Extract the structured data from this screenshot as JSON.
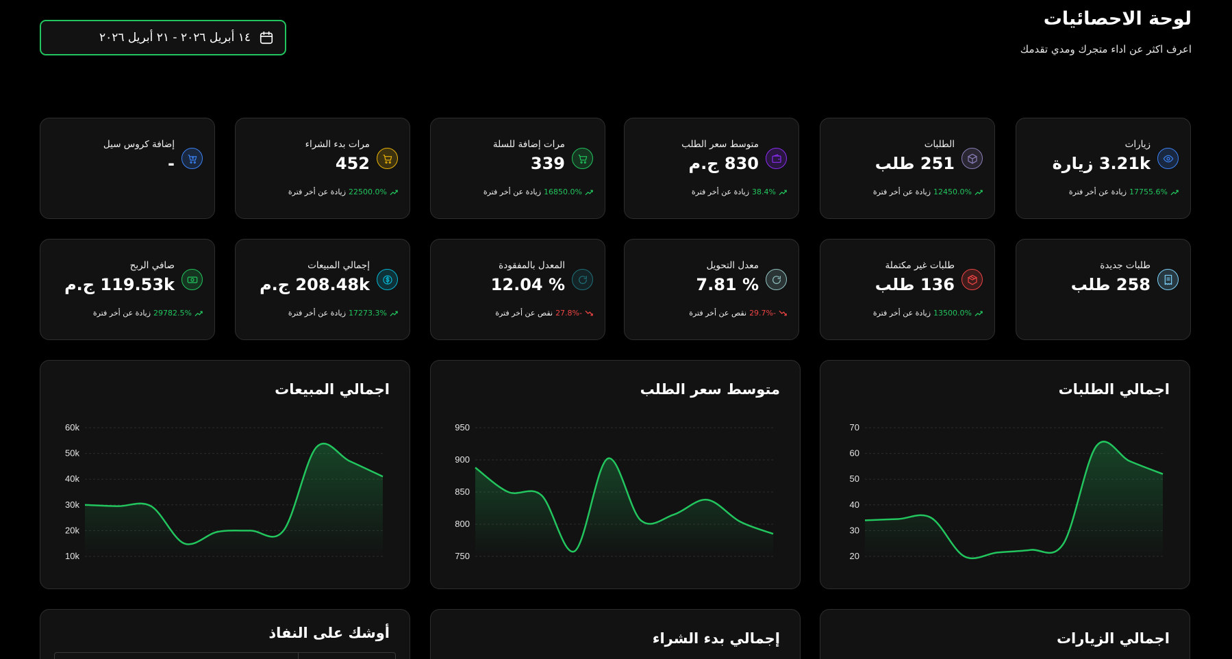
{
  "header": {
    "title": "لوحة الاحصائيات",
    "subtitle": "اعرف اكثر عن اداء متجرك ومدي تقدمك",
    "date_range": "١٤ أبريل ٢٠٢٦  -  ٢١ أبريل ٢٠٢٦"
  },
  "colors": {
    "accent": "#22c55e",
    "down": "#ef4444",
    "card_bg": "#121212",
    "border": "#2e2e2e"
  },
  "stats": [
    {
      "label": "زيارات",
      "value": "3.21k زيارة",
      "pct": "17755.6%",
      "trend_text": "زيادة عن أخر فترة",
      "dir": "up",
      "icon": "eye-icon",
      "color": "#3b82f6"
    },
    {
      "label": "الطلبات",
      "value": "251 طلب",
      "pct": "12450.0%",
      "trend_text": "زيادة عن أخر فترة",
      "dir": "up",
      "icon": "box-icon",
      "color": "#8b7fb8"
    },
    {
      "label": "متوسط سعر الطلب",
      "value": "830 ج.م",
      "pct": "38.4%",
      "trend_text": "زيادة عن أخر فترة",
      "dir": "up",
      "icon": "wallet-icon",
      "color": "#8b2cf5"
    },
    {
      "label": "مرات إضافة للسلة",
      "value": "339",
      "pct": "16850.0%",
      "trend_text": "زيادة عن أخر فترة",
      "dir": "up",
      "icon": "cart-icon",
      "color": "#22c55e"
    },
    {
      "label": "مرات بدء الشراء",
      "value": "452",
      "pct": "22500.0%",
      "trend_text": "زيادة عن أخر فترة",
      "dir": "up",
      "icon": "cart-icon",
      "color": "#eab308"
    },
    {
      "label": "إضافة كروس سيل",
      "value": "-",
      "pct": "",
      "trend_text": "",
      "dir": "none",
      "icon": "cart-plus-icon",
      "color": "#3b82f6"
    },
    {
      "label": "طلبات جديدة",
      "value": "258 طلب",
      "pct": "",
      "trend_text": "",
      "dir": "none",
      "icon": "receipt-icon",
      "color": "#7dd3fc"
    },
    {
      "label": "طلبات غير مكتملة",
      "value": "136 طلب",
      "pct": "13500.0%",
      "trend_text": "زيادة عن أخر فترة",
      "dir": "up",
      "icon": "package-icon",
      "color": "#ef4444"
    },
    {
      "label": "معدل التحويل",
      "value": "% 7.81",
      "pct": "-29.7%",
      "trend_text": "نقص عن أخر فترة",
      "dir": "down",
      "icon": "refresh-icon",
      "color": "#94c5c5"
    },
    {
      "label": "المعدل بالمفقودة",
      "value": "% 12.04",
      "pct": "-27.8%",
      "trend_text": "نقص عن أخر فترة",
      "dir": "down",
      "icon": "refresh-icon",
      "color": "#1f6f7a"
    },
    {
      "label": "إجمالي المبيعات",
      "value": "208.48k ج.م",
      "pct": "17273.3%",
      "trend_text": "زيادة عن أخر فترة",
      "dir": "up",
      "icon": "dollar-icon",
      "color": "#06b6d4"
    },
    {
      "label": "صافي الربح",
      "value": "119.53k ج.م",
      "pct": "29782.5%",
      "trend_text": "زيادة عن أخر فترة",
      "dir": "up",
      "icon": "money-icon",
      "color": "#22c55e"
    }
  ],
  "chart_data": [
    {
      "type": "area",
      "title": "اجمالي الطلبات",
      "yticks": [
        "70",
        "60",
        "50",
        "40",
        "30",
        "20"
      ],
      "ylim": [
        20,
        70
      ],
      "values": [
        34,
        34.5,
        35,
        20,
        21.5,
        22.5,
        25,
        63,
        57,
        52
      ]
    },
    {
      "type": "area",
      "title": "متوسط سعر الطلب",
      "yticks": [
        "950",
        "900",
        "850",
        "800",
        "750"
      ],
      "ylim": [
        750,
        950
      ],
      "values": [
        888,
        850,
        845,
        758,
        902,
        806,
        815,
        838,
        804,
        785
      ]
    },
    {
      "type": "area",
      "title": "اجمالي المبيعات",
      "yticks": [
        "60k",
        "50k",
        "40k",
        "30k",
        "20k",
        "10k"
      ],
      "ylim": [
        10000,
        60000
      ],
      "values": [
        30000,
        29500,
        29500,
        15000,
        19500,
        20000,
        20000,
        52500,
        47000,
        41000
      ]
    }
  ],
  "bottom": {
    "visits_title": "اجمالي الزيارات",
    "checkout_title": "إجمالي بدء الشراء",
    "low_stock_title": "أوشك على النفاذ"
  }
}
